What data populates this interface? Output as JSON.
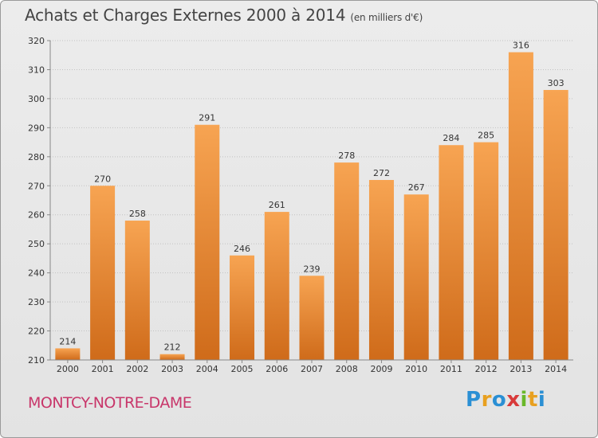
{
  "header": {
    "title": "Achats et Charges Externes 2000 à 2014",
    "subtitle": "(en milliers d'€)"
  },
  "footer": {
    "commune": "MONTCY-NOTRE-DAME",
    "logo": [
      "P",
      "r",
      "o",
      "x",
      "i",
      "t",
      "i"
    ],
    "logo_colors": [
      "#2a8fd4",
      "#e8a020",
      "#2a8fd4",
      "#d83a3a",
      "#6ab82a",
      "#e8a020",
      "#2a8fd4"
    ]
  },
  "chart_data": {
    "type": "bar",
    "categories": [
      "2000",
      "2001",
      "2002",
      "2003",
      "2004",
      "2005",
      "2006",
      "2007",
      "2008",
      "2009",
      "2010",
      "2011",
      "2012",
      "2013",
      "2014"
    ],
    "values": [
      214,
      270,
      258,
      212,
      291,
      246,
      261,
      239,
      278,
      272,
      267,
      284,
      285,
      316,
      303
    ],
    "title": "Achats et Charges Externes 2000 à 2014",
    "ylim": [
      210,
      320
    ],
    "yticks": [
      210,
      220,
      230,
      240,
      250,
      260,
      270,
      280,
      290,
      300,
      310,
      320
    ],
    "grid": true,
    "bar_color_top": "#f7a452",
    "bar_color_bottom": "#cf6b1a"
  }
}
